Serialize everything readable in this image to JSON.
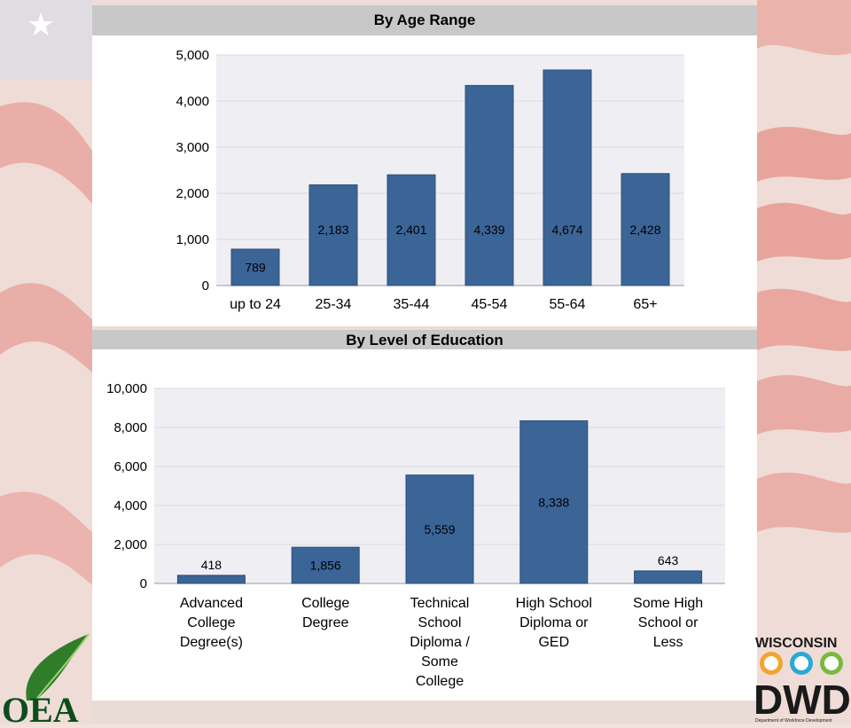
{
  "chart_data": [
    {
      "type": "bar",
      "title": "By Age Range",
      "categories": [
        "up to 24",
        "25-34",
        "35-44",
        "45-54",
        "55-64",
        "65+"
      ],
      "values": [
        789,
        2183,
        2401,
        4339,
        4674,
        2428
      ],
      "value_labels": [
        "789",
        "2,183",
        "2,401",
        "4,339",
        "4,674",
        "2,428"
      ],
      "ylim": [
        0,
        5000
      ],
      "yticks": [
        0,
        1000,
        2000,
        3000,
        4000,
        5000
      ],
      "ytick_labels": [
        "0",
        "1,000",
        "2,000",
        "3,000",
        "4,000",
        "5,000"
      ],
      "grid": true,
      "bar_color": "#3b6497"
    },
    {
      "type": "bar",
      "title": "By Level of Education",
      "categories": [
        [
          "Advanced",
          "College",
          "Degree(s)"
        ],
        [
          "College",
          "Degree"
        ],
        [
          "Technical",
          "School",
          "Diploma /",
          "Some",
          "College"
        ],
        [
          "High School",
          "Diploma or",
          "GED"
        ],
        [
          "Some High",
          "School or",
          "Less"
        ]
      ],
      "values": [
        418,
        1856,
        5559,
        8338,
        643
      ],
      "value_labels": [
        "418",
        "1,856",
        "5,559",
        "8,338",
        "643"
      ],
      "ylim": [
        0,
        10000
      ],
      "yticks": [
        0,
        2000,
        4000,
        6000,
        8000,
        10000
      ],
      "ytick_labels": [
        "0",
        "2,000",
        "4,000",
        "6,000",
        "8,000",
        "10,000"
      ],
      "grid": true,
      "bar_color": "#3b6497"
    }
  ],
  "logos": {
    "oea_text": "OEA",
    "dwd_top": "WISCONSIN",
    "dwd_main": "DWD",
    "dwd_sub": "Department of Workforce Development"
  }
}
